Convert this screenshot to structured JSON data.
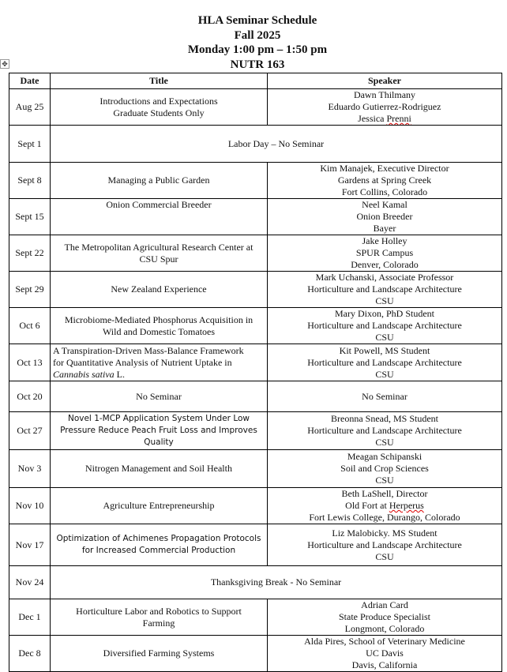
{
  "header": {
    "title": "HLA Seminar Schedule",
    "term": "Fall 2025",
    "time": "Monday 1:00 pm – 1:50 pm",
    "room": "NUTR 163"
  },
  "columns": {
    "date": "Date",
    "title": "Title",
    "speaker": "Speaker"
  },
  "rows": [
    {
      "date": "Aug 25",
      "title": [
        "Introductions and Expectations",
        "Graduate Students Only"
      ],
      "speaker": [
        "Dawn Thilmany",
        "Eduardo Gutierrez-Rodriguez",
        "Jessica Prenni"
      ]
    },
    {
      "date": "Sept 1",
      "merged": "Labor Day – No Seminar"
    },
    {
      "date": "Sept 8",
      "title": [
        "Managing a Public Garden"
      ],
      "speaker": [
        "Kim Manajek, Executive Director",
        "Gardens at Spring Creek",
        "Fort Collins, Colorado"
      ]
    },
    {
      "date": "Sept 15",
      "title": [
        "Onion Commercial Breeder"
      ],
      "speaker": [
        "Neel Kamal",
        "Onion Breeder",
        "Bayer"
      ]
    },
    {
      "date": "Sept 22",
      "title": [
        "The Metropolitan Agricultural Research Center at",
        "CSU Spur"
      ],
      "speaker": [
        "Jake Holley",
        "SPUR Campus",
        "Denver, Colorado"
      ]
    },
    {
      "date": "Sept 29",
      "title": [
        "New Zealand Experience"
      ],
      "speaker": [
        "Mark Uchanski, Associate Professor",
        "Horticulture and Landscape Architecture",
        "CSU"
      ]
    },
    {
      "date": "Oct 6",
      "title": [
        "Microbiome-Mediated Phosphorus Acquisition in",
        "Wild and Domestic Tomatoes"
      ],
      "speaker": [
        "Mary Dixon, PhD Student",
        "Horticulture and Landscape Architecture",
        "CSU"
      ]
    },
    {
      "date": "Oct 13",
      "title": [
        "A Transpiration-Driven Mass-Balance Framework",
        "for Quantitative Analysis of Nutrient Uptake in"
      ],
      "title_italic": "Cannabis sativa",
      "title_tail": " L.",
      "speaker": [
        "Kit Powell, MS Student",
        "Horticulture and Landscape Architecture",
        "CSU"
      ]
    },
    {
      "date": "Oct 20",
      "title": [
        "No Seminar"
      ],
      "speaker": [
        "No Seminar"
      ]
    },
    {
      "date": "Oct 27",
      "title": [
        "Novel 1-MCP Application System Under Low",
        "Pressure Reduce Peach Fruit Loss and Improves",
        "Quality"
      ],
      "speaker": [
        "Breonna Snead, MS Student",
        "Horticulture and Landscape Architecture",
        "CSU"
      ]
    },
    {
      "date": "Nov 3",
      "title": [
        "Nitrogen Management and Soil Health"
      ],
      "speaker": [
        "Meagan Schipanski",
        "Soil and Crop Sciences",
        "CSU"
      ]
    },
    {
      "date": "Nov 10",
      "title": [
        "Agriculture Entrepreneurship"
      ],
      "speaker": [
        "Beth LaShell, Director",
        "Old Fort at Herperus",
        "Fort Lewis College, Durango, Colorado"
      ]
    },
    {
      "date": "Nov 17",
      "title": [
        "Optimization of Achimenes Propagation Protocols",
        "for Increased Commercial Production"
      ],
      "speaker": [
        "Liz Malobicky. MS Student",
        "Horticulture and Landscape Architecture",
        "CSU"
      ]
    },
    {
      "date": "Nov 24",
      "merged": "Thanksgiving Break -  No Seminar"
    },
    {
      "date": "Dec 1",
      "title": [
        "Horticulture Labor and Robotics to Support",
        "Farming"
      ],
      "speaker": [
        "Adrian Card",
        "State Produce Specialist",
        "Longmont, Colorado"
      ]
    },
    {
      "date": "Dec 8",
      "title": [
        "Diversified Farming Systems"
      ],
      "speaker": [
        "Alda Pires, School of Veterinary Medicine",
        "UC Davis",
        "Davis, California"
      ]
    }
  ],
  "icons": {
    "table_handle": "move-handle-icon"
  }
}
